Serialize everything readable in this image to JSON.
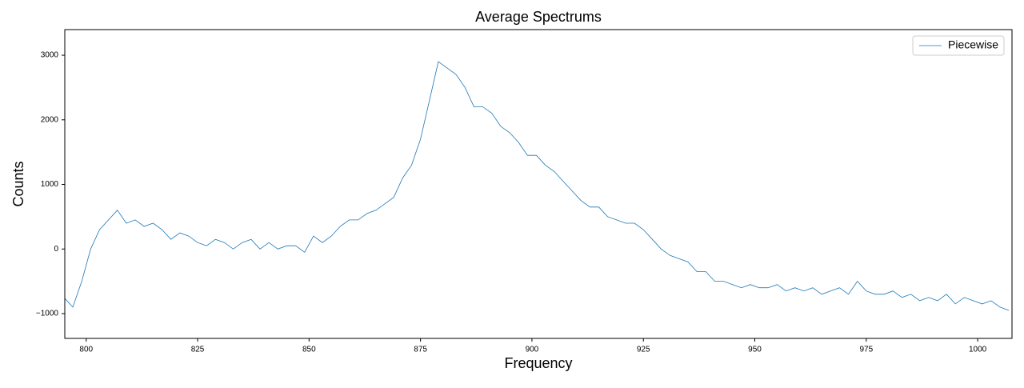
{
  "chart_data": {
    "type": "line",
    "title": "Average Spectrums",
    "x_label": "Frequency",
    "y_label": "Counts",
    "x": [
      795,
      797,
      799,
      801,
      803,
      805,
      807,
      809,
      811,
      813,
      815,
      817,
      819,
      821,
      823,
      825,
      827,
      829,
      831,
      833,
      835,
      837,
      839,
      841,
      843,
      845,
      847,
      849,
      851,
      853,
      855,
      857,
      859,
      861,
      863,
      865,
      867,
      869,
      871,
      873,
      875,
      877,
      879,
      881,
      883,
      885,
      887,
      889,
      891,
      893,
      895,
      897,
      899,
      901,
      903,
      905,
      907,
      909,
      911,
      913,
      915,
      917,
      919,
      921,
      923,
      925,
      927,
      929,
      931,
      933,
      935,
      937,
      939,
      941,
      943,
      945,
      947,
      949,
      951,
      953,
      955,
      957,
      959,
      961,
      963,
      965,
      967,
      969,
      971,
      973,
      975,
      977,
      979,
      981,
      983,
      985,
      987,
      989,
      991,
      993,
      995,
      997,
      999,
      1001,
      1003,
      1005,
      1007
    ],
    "series": [
      {
        "name": "Piecewise",
        "color": "#1f77b4",
        "values": [
          -750,
          -900,
          -500,
          0,
          300,
          450,
          600,
          400,
          450,
          350,
          400,
          300,
          150,
          250,
          200,
          100,
          50,
          150,
          100,
          0,
          100,
          150,
          0,
          100,
          0,
          50,
          50,
          -50,
          200,
          100,
          200,
          350,
          450,
          450,
          550,
          600,
          700,
          800,
          1100,
          1300,
          1700,
          2300,
          2900,
          2800,
          2700,
          2500,
          2200,
          2200,
          2100,
          1900,
          1800,
          1650,
          1450,
          1450,
          1300,
          1200,
          1050,
          900,
          750,
          650,
          650,
          500,
          450,
          400,
          400,
          300,
          150,
          0,
          -100,
          -150,
          -200,
          -350,
          -350,
          -500,
          -500,
          -550,
          -600,
          -550,
          -600,
          -600,
          -550,
          -650,
          -600,
          -650,
          -600,
          -700,
          -650,
          -600,
          -700,
          -500,
          -650,
          -700,
          -700,
          -650,
          -750,
          -700,
          -800,
          -750,
          -800,
          -700,
          -850,
          -750,
          -800,
          -850,
          -800,
          -900,
          -950
        ]
      }
    ],
    "xlim": [
      795.2,
      1007.7
    ],
    "ylim": [
      -1384,
      3397
    ],
    "xticks": [
      800,
      825,
      850,
      875,
      900,
      925,
      950,
      975,
      1000
    ],
    "yticks": [
      {
        "value": -1000,
        "label": "−1000"
      },
      0,
      1000,
      2000,
      3000
    ],
    "legend": "upper right"
  }
}
